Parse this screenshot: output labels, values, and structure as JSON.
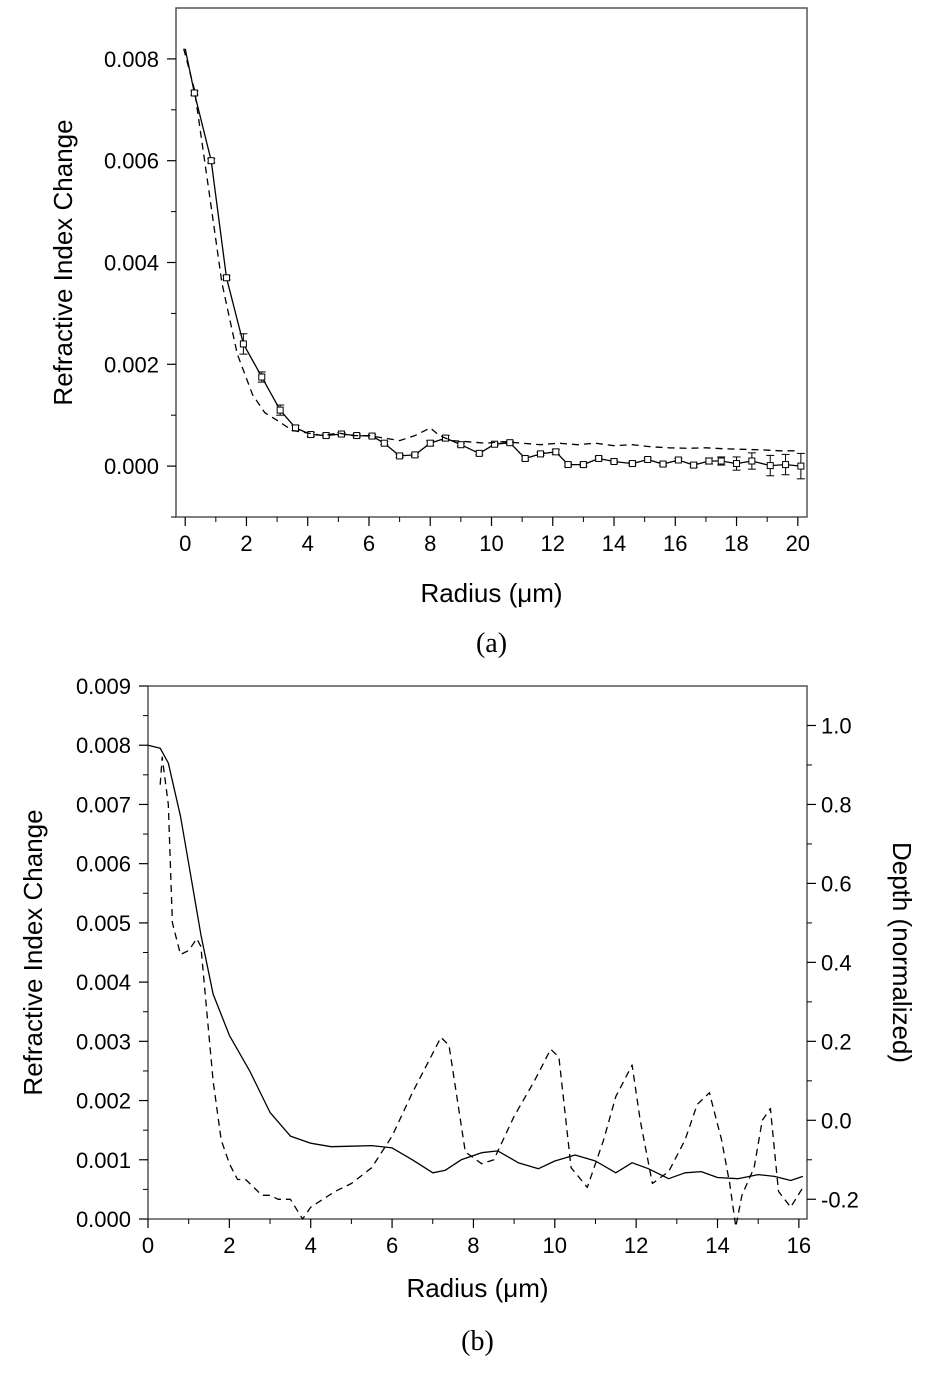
{
  "chart_data": [
    {
      "panel": "a",
      "caption": "(a)",
      "type": "line",
      "xlabel": "Radius (μm)",
      "ylabel": "Refractive Index Change",
      "xlim": [
        -0.3,
        20.3
      ],
      "ylim": [
        -0.001,
        0.009
      ],
      "xticks": [
        "0",
        "2",
        "4",
        "6",
        "8",
        "10",
        "12",
        "14",
        "16",
        "18",
        "20"
      ],
      "yticks": [
        "0.000",
        "0.002",
        "0.004",
        "0.006",
        "0.008"
      ],
      "grid": false,
      "legend": "none",
      "series": [
        {
          "style": "solid-with-square-markers-and-error-bars",
          "x": [
            0,
            0.3,
            0.85,
            1.35,
            1.9,
            2.5,
            3.1,
            3.6,
            4.1,
            4.6,
            5.1,
            5.6,
            6.1,
            6.5,
            7.0,
            7.5,
            8.0,
            8.5,
            9.0,
            9.6,
            10.1,
            10.6,
            11.1,
            11.6,
            12.1,
            12.5,
            13.0,
            13.5,
            14.0,
            14.6,
            15.1,
            15.6,
            16.1,
            16.6,
            17.1,
            17.5,
            18.0,
            18.5,
            19.1,
            19.6,
            20.1
          ],
          "y": [
            0.0082,
            0.00733,
            0.006,
            0.0037,
            0.0024,
            0.00175,
            0.0011,
            0.00075,
            0.00062,
            0.0006,
            0.00063,
            0.0006,
            0.00059,
            0.00045,
            0.0002,
            0.00022,
            0.00045,
            0.00055,
            0.00042,
            0.00025,
            0.00043,
            0.00046,
            0.00015,
            0.00024,
            0.00028,
            3e-05,
            3e-05,
            0.00015,
            9e-05,
            5e-05,
            0.00013,
            4e-05,
            0.00012,
            2e-05,
            0.0001,
            0.0001,
            5e-05,
            0.0001,
            1e-05,
            3e-05,
            0.0
          ],
          "error": [
            0,
            4e-05,
            4e-05,
            4e-05,
            0.0002,
            0.0001,
            0.0001,
            5e-05,
            4e-05,
            3e-05,
            3e-05,
            3e-05,
            3e-05,
            3e-05,
            3e-05,
            3e-05,
            5e-05,
            5e-05,
            3e-05,
            3e-05,
            3e-05,
            3e-05,
            3e-05,
            3e-05,
            5e-05,
            3e-05,
            3e-05,
            3e-05,
            3e-05,
            3e-05,
            3e-05,
            3e-05,
            3e-05,
            4e-05,
            6e-05,
            8e-05,
            0.00013,
            0.00016,
            0.0002,
            0.0002,
            0.00025
          ]
        },
        {
          "style": "dashed",
          "x": [
            -0.05,
            0.3,
            0.8,
            1.2,
            1.7,
            2.2,
            2.6,
            3.0,
            3.5,
            4.0,
            4.5,
            5.0,
            5.5,
            6.0,
            6.5,
            7.0,
            7.5,
            8.0,
            8.3,
            8.7,
            9.2,
            9.8,
            10.4,
            11.0,
            11.6,
            12.2,
            12.8,
            13.4,
            14.0,
            14.6,
            15.2,
            15.8,
            16.4,
            17.0,
            17.6,
            18.2,
            18.8,
            19.4,
            20.0
          ],
          "y": [
            0.0082,
            0.0074,
            0.0053,
            0.0036,
            0.0022,
            0.0014,
            0.00105,
            0.0009,
            0.0007,
            0.00065,
            0.0006,
            0.00065,
            0.0006,
            0.0006,
            0.00055,
            0.0005,
            0.0006,
            0.00075,
            0.0006,
            0.0005,
            0.00048,
            0.00045,
            0.00048,
            0.00045,
            0.00042,
            0.00045,
            0.00042,
            0.00045,
            0.0004,
            0.00042,
            0.00038,
            0.00036,
            0.00035,
            0.00036,
            0.00034,
            0.00033,
            0.00032,
            0.0003,
            0.0003
          ]
        }
      ]
    },
    {
      "panel": "b",
      "caption": "(b)",
      "type": "line",
      "xlabel": "Radius (μm)",
      "ylabel": "Refractive Index Change",
      "y2label": "Depth (normalized)",
      "xlim": [
        0,
        16.2
      ],
      "ylim": [
        0,
        0.009
      ],
      "y2lim": [
        -0.25,
        1.1
      ],
      "xticks": [
        "0",
        "2",
        "4",
        "6",
        "8",
        "10",
        "12",
        "14",
        "16"
      ],
      "yticks": [
        "0.000",
        "0.001",
        "0.002",
        "0.003",
        "0.004",
        "0.005",
        "0.006",
        "0.007",
        "0.008",
        "0.009"
      ],
      "y2ticks": [
        "-0.2",
        "0.0",
        "0.2",
        "0.4",
        "0.6",
        "0.8",
        "1.0"
      ],
      "grid": false,
      "legend": "none",
      "series": [
        {
          "style": "solid",
          "axis": "left",
          "x": [
            0,
            0.3,
            0.5,
            0.8,
            1.0,
            1.3,
            1.6,
            2.0,
            2.5,
            3.0,
            3.5,
            4.0,
            4.5,
            5.0,
            5.5,
            6.0,
            6.5,
            7.0,
            7.3,
            7.7,
            8.2,
            8.6,
            9.1,
            9.6,
            10.0,
            10.5,
            11.0,
            11.5,
            11.9,
            12.3,
            12.8,
            13.2,
            13.6,
            14.0,
            14.5,
            15.0,
            15.4,
            15.8,
            16.1
          ],
          "y": [
            0.008,
            0.00795,
            0.0077,
            0.0068,
            0.006,
            0.0048,
            0.0038,
            0.0031,
            0.0025,
            0.0018,
            0.0014,
            0.00128,
            0.00122,
            0.00123,
            0.00124,
            0.0012,
            0.001,
            0.00078,
            0.00082,
            0.001,
            0.00112,
            0.00115,
            0.00095,
            0.00085,
            0.00098,
            0.00108,
            0.00098,
            0.00078,
            0.00095,
            0.00085,
            0.00068,
            0.00078,
            0.0008,
            0.0007,
            0.00068,
            0.00075,
            0.00072,
            0.00065,
            0.00072
          ]
        },
        {
          "style": "dashed",
          "axis": "right",
          "x": [
            0.3,
            0.35,
            0.5,
            0.6,
            0.8,
            1.0,
            1.2,
            1.3,
            1.6,
            1.8,
            2.0,
            2.2,
            2.4,
            2.6,
            2.8,
            3.0,
            3.2,
            3.5,
            3.8,
            4.0,
            4.3,
            4.6,
            5.0,
            5.5,
            6.0,
            6.5,
            7.0,
            7.2,
            7.4,
            7.8,
            8.2,
            8.5,
            9.0,
            9.5,
            9.9,
            10.1,
            10.4,
            10.8,
            11.2,
            11.5,
            11.9,
            12.1,
            12.4,
            12.8,
            13.2,
            13.5,
            13.8,
            14.1,
            14.3,
            14.45,
            14.6,
            14.9,
            15.1,
            15.3,
            15.5,
            15.8,
            16.1
          ],
          "y": [
            0.85,
            0.92,
            0.8,
            0.5,
            0.42,
            0.43,
            0.46,
            0.44,
            0.1,
            -0.05,
            -0.11,
            -0.15,
            -0.15,
            -0.17,
            -0.19,
            -0.19,
            -0.2,
            -0.2,
            -0.25,
            -0.22,
            -0.2,
            -0.18,
            -0.16,
            -0.12,
            -0.04,
            0.07,
            0.17,
            0.21,
            0.19,
            -0.08,
            -0.11,
            -0.1,
            0.01,
            0.1,
            0.18,
            0.16,
            -0.12,
            -0.17,
            -0.05,
            0.06,
            0.14,
            0.0,
            -0.16,
            -0.13,
            -0.05,
            0.04,
            0.07,
            -0.05,
            -0.16,
            -0.27,
            -0.19,
            -0.12,
            0.0,
            0.03,
            -0.18,
            -0.22,
            -0.17
          ]
        }
      ]
    }
  ]
}
